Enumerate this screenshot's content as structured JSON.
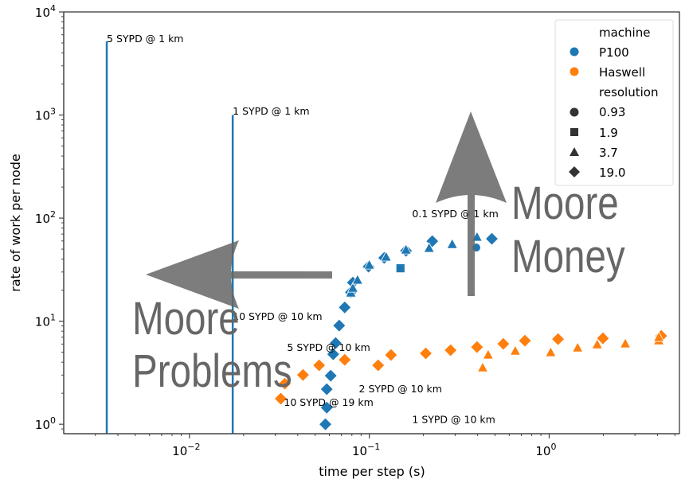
{
  "chart_data": {
    "type": "scatter",
    "xlabel": "time per step (s)",
    "ylabel": "rate of work per node",
    "xscale": "log",
    "yscale": "log",
    "xlim": [
      0.002,
      5.3
    ],
    "ylim": [
      0.81,
      10000
    ],
    "xticks": [
      {
        "value": 0.01,
        "base": "10",
        "exp": "−2"
      },
      {
        "value": 0.1,
        "base": "10",
        "exp": "−1"
      },
      {
        "value": 1,
        "base": "10",
        "exp": "0"
      }
    ],
    "yticks": [
      {
        "value": 1,
        "base": "10",
        "exp": "0"
      },
      {
        "value": 10,
        "base": "10",
        "exp": "1"
      },
      {
        "value": 100,
        "base": "10",
        "exp": "2"
      },
      {
        "value": 1000,
        "base": "10",
        "exp": "3"
      },
      {
        "value": 10000,
        "base": "10",
        "exp": "4"
      }
    ],
    "colors": {
      "P100": "#1f77b4",
      "Haswell": "#ff7f0e",
      "arrow": "#666666"
    },
    "legend": {
      "placement": "top-right",
      "hue_title": "machine",
      "hue": [
        {
          "label": "P100",
          "color": "#1f77b4"
        },
        {
          "label": "Haswell",
          "color": "#ff7f0e"
        }
      ],
      "style_title": "resolution",
      "styles": [
        {
          "label": "0.93",
          "marker": "circle"
        },
        {
          "label": "1.9",
          "marker": "square"
        },
        {
          "label": "3.7",
          "marker": "triangle"
        },
        {
          "label": "19.0",
          "marker": "diamond"
        }
      ]
    },
    "series": [
      {
        "machine": "P100",
        "resolution": "19.0",
        "marker": "diamond",
        "points": [
          [
            0.057,
            1.0
          ],
          [
            0.058,
            1.45
          ],
          [
            0.058,
            2.19
          ],
          [
            0.061,
            2.96
          ],
          [
            0.063,
            4.78
          ],
          [
            0.065,
            6.13
          ],
          [
            0.068,
            9.07
          ],
          [
            0.073,
            13.6
          ],
          [
            0.079,
            19.1
          ],
          [
            0.081,
            23.7
          ],
          [
            0.099,
            33.8
          ],
          [
            0.121,
            41.1
          ],
          [
            0.16,
            48.2
          ],
          [
            0.224,
            59.7
          ],
          [
            0.48,
            63.0
          ]
        ]
      },
      {
        "machine": "P100",
        "resolution": "3.7",
        "marker": "triangle",
        "points": [
          [
            0.079,
            18.8
          ],
          [
            0.081,
            20.9
          ],
          [
            0.086,
            25.0
          ],
          [
            0.1,
            35.0
          ],
          [
            0.124,
            41.9
          ],
          [
            0.16,
            49.1
          ],
          [
            0.215,
            50.9
          ],
          [
            0.289,
            55.6
          ],
          [
            0.397,
            65.3
          ]
        ]
      },
      {
        "machine": "P100",
        "resolution": "1.9",
        "marker": "square",
        "points": [
          [
            0.149,
            32.6
          ]
        ]
      },
      {
        "machine": "P100",
        "resolution": "0.93",
        "marker": "circle",
        "points": [
          [
            0.393,
            51.8
          ]
        ]
      },
      {
        "machine": "Haswell",
        "resolution": "19.0",
        "marker": "diamond",
        "points": [
          [
            0.0322,
            1.77
          ],
          [
            0.0339,
            2.48
          ],
          [
            0.0428,
            3.01
          ],
          [
            0.0526,
            3.73
          ],
          [
            0.073,
            4.22
          ],
          [
            0.112,
            3.73
          ],
          [
            0.132,
            4.7
          ],
          [
            0.206,
            4.87
          ],
          [
            0.283,
            5.23
          ],
          [
            0.397,
            5.61
          ],
          [
            0.556,
            6.03
          ],
          [
            0.733,
            6.47
          ],
          [
            1.12,
            6.7
          ],
          [
            1.99,
            6.82
          ],
          [
            4.2,
            7.2
          ]
        ]
      },
      {
        "machine": "Haswell",
        "resolution": "3.7",
        "marker": "triangle",
        "points": [
          [
            0.427,
            3.53
          ],
          [
            0.458,
            4.7
          ],
          [
            0.648,
            5.13
          ],
          [
            1.02,
            4.96
          ],
          [
            1.44,
            5.51
          ],
          [
            1.85,
            5.92
          ],
          [
            2.65,
            6.03
          ],
          [
            4.07,
            6.47
          ],
          [
            4.07,
            6.95
          ]
        ]
      }
    ],
    "vlines": [
      {
        "x": 0.00347,
        "ymax": 5180,
        "label": "5 SYPD @ 1 km"
      },
      {
        "x": 0.0174,
        "ymax": 1000,
        "label": "1 SYPD @ 1 km"
      }
    ],
    "annotations": [
      {
        "text": "5 SYPD @ 1 km",
        "x": 0.00347,
        "y": 5460
      },
      {
        "text": "1 SYPD @ 1 km",
        "x": 0.0174,
        "y": 1083
      },
      {
        "text": "0.1 SYPD @ 1 km",
        "x": 0.173,
        "y": 109
      },
      {
        "text": "10 SYPD @ 10 km",
        "x": 0.0174,
        "y": 11.0
      },
      {
        "text": "5 SYPD @ 10 km",
        "x": 0.0349,
        "y": 5.51
      },
      {
        "text": "2 SYPD @ 10 km",
        "x": 0.0875,
        "y": 2.19
      },
      {
        "text": "10 SYPD @ 19 km",
        "x": 0.0335,
        "y": 1.62
      },
      {
        "text": "1 SYPD @ 10 km",
        "x": 0.173,
        "y": 1.11
      }
    ],
    "overlay_text": {
      "money_line1": "Moore",
      "money_line2": "Money",
      "problems_line1": "Moore",
      "problems_line2": "Problems"
    }
  }
}
